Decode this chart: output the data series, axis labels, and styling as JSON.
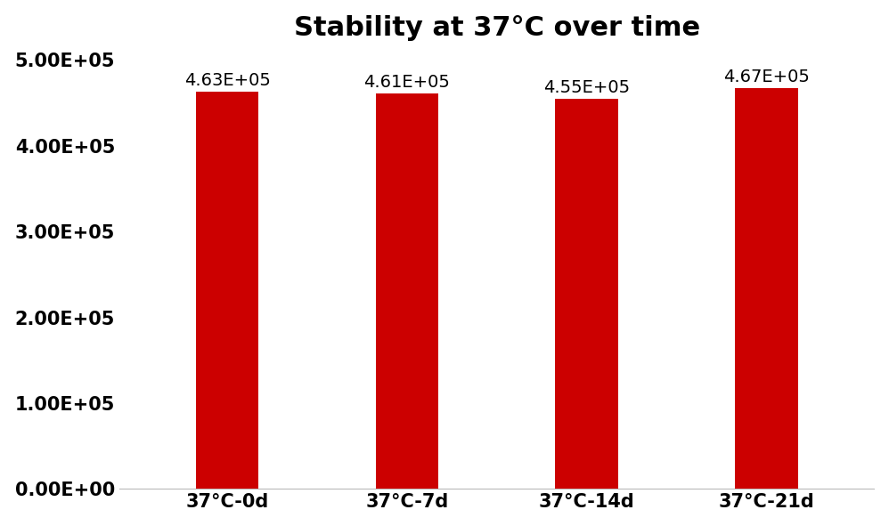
{
  "title": "Stability at 37°C over time",
  "categories": [
    "37°C-0d",
    "37°C-7d",
    "37°C-14d",
    "37°C-21d"
  ],
  "values": [
    463000,
    461000,
    455000,
    467000
  ],
  "labels": [
    "4.63E+05",
    "4.61E+05",
    "4.55E+05",
    "4.67E+05"
  ],
  "bar_color": "#CC0000",
  "ylim": [
    0,
    500000
  ],
  "yticks": [
    0,
    100000,
    200000,
    300000,
    400000,
    500000
  ],
  "ytick_labels": [
    "0.00E+00",
    "1.00E+05",
    "2.00E+05",
    "3.00E+05",
    "4.00E+05",
    "5.00E+05"
  ],
  "title_fontsize": 22,
  "tick_fontsize": 15,
  "label_fontsize": 14,
  "background_color": "#ffffff"
}
